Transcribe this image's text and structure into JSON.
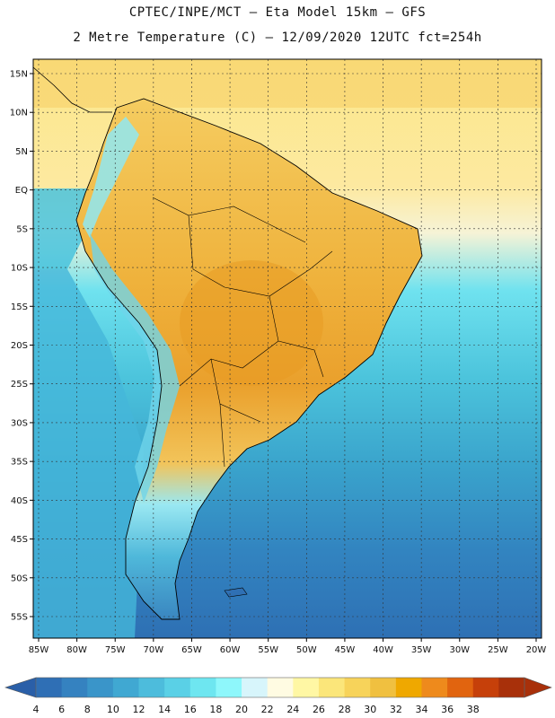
{
  "header": {
    "line1": "CPTEC/INPE/MCT —  Eta Model 15km — GFS",
    "line2": "2 Metre Temperature (C) — 12/09/2020 12UTC fct=254h"
  },
  "map": {
    "lat_labels": [
      "15N",
      "10N",
      "5N",
      "EQ",
      "5S",
      "10S",
      "15S",
      "20S",
      "25S",
      "30S",
      "35S",
      "40S",
      "45S",
      "50S",
      "55S"
    ],
    "lon_labels": [
      "85W",
      "80W",
      "75W",
      "70W",
      "65W",
      "60W",
      "55W",
      "50W",
      "45W",
      "40W",
      "35W",
      "30W",
      "25W",
      "20W"
    ],
    "ocean_color": "#5ad6e6",
    "land_color": "#f0b440"
  },
  "colorbar": {
    "values": [
      "4",
      "6",
      "8",
      "10",
      "12",
      "14",
      "16",
      "18",
      "20",
      "22",
      "24",
      "26",
      "28",
      "30",
      "32",
      "34",
      "36",
      "38"
    ],
    "colors": [
      "#2f6fb5",
      "#3582c0",
      "#3a95c9",
      "#40a8d2",
      "#4dbcdc",
      "#5ad0e6",
      "#6ee6f0",
      "#8ef7fb",
      "#d7f5fb",
      "#fffbe2",
      "#fff7a4",
      "#fbe67a",
      "#f7d35a",
      "#f0c040",
      "#efa800",
      "#ee8a1c",
      "#e1640f",
      "#c6400a",
      "#a8300a"
    ],
    "low_color": "#2a5fa8",
    "high_color": "#a8300a"
  }
}
